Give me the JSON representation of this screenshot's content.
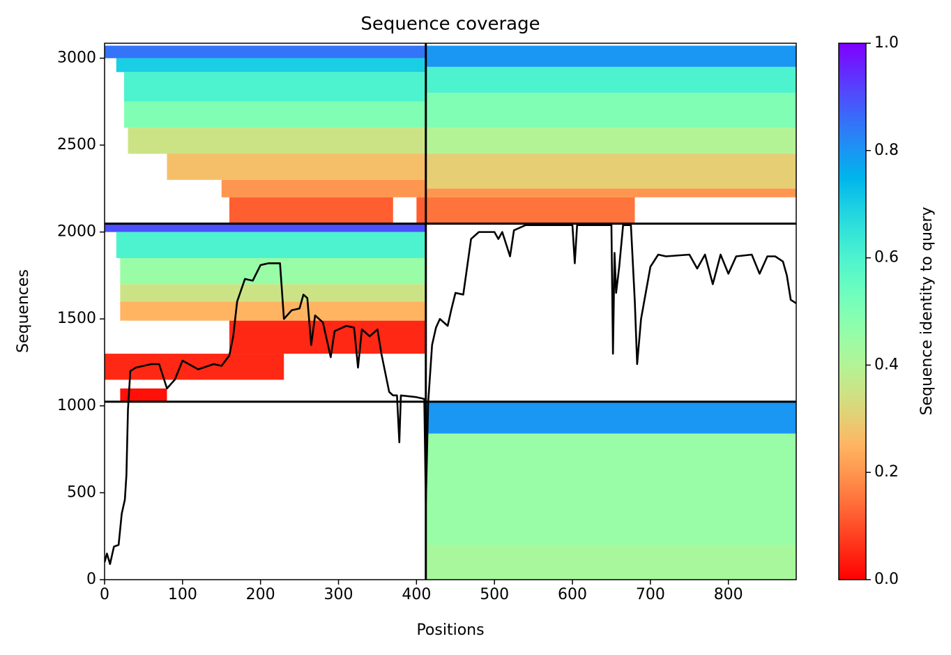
{
  "chart_data": {
    "type": "line",
    "title": "Sequence coverage",
    "xlabel": "Positions",
    "ylabel": "Sequences",
    "xlim": [
      0,
      887
    ],
    "ylim": [
      0,
      3086
    ],
    "xticks": [
      0,
      100,
      200,
      300,
      400,
      500,
      600,
      700,
      800
    ],
    "yticks": [
      0,
      500,
      1000,
      1500,
      2000,
      2500,
      3000
    ],
    "colormap": "rainbow_r",
    "colorbar_label": "Sequence identity to query",
    "clim": [
      0,
      1
    ],
    "cticks": [
      {
        "value": 0,
        "label": "0.0"
      },
      {
        "value": 0.2,
        "label": "0.2"
      },
      {
        "value": 0.4,
        "label": "0.4"
      },
      {
        "value": 0.6,
        "label": "0.6"
      },
      {
        "value": 0.8,
        "label": "0.8"
      },
      {
        "value": 1,
        "label": "1.0"
      }
    ],
    "line_color": "#000000",
    "breaks": {
      "x": [
        412
      ],
      "y": [
        1024,
        2048
      ]
    },
    "heatmap": [
      {
        "x0": 0,
        "x1": 412,
        "y0": 3000,
        "y1": 3072,
        "identity": 0.85
      },
      {
        "x0": 15,
        "x1": 412,
        "y0": 2920,
        "y1": 3000,
        "identity": 0.7
      },
      {
        "x0": 25,
        "x1": 412,
        "y0": 2750,
        "y1": 2920,
        "identity": 0.6
      },
      {
        "x0": 25,
        "x1": 412,
        "y0": 2600,
        "y1": 2750,
        "identity": 0.5
      },
      {
        "x0": 30,
        "x1": 412,
        "y0": 2450,
        "y1": 2600,
        "identity": 0.35
      },
      {
        "x0": 80,
        "x1": 412,
        "y0": 2300,
        "y1": 2450,
        "identity": 0.27
      },
      {
        "x0": 150,
        "x1": 412,
        "y0": 2200,
        "y1": 2300,
        "identity": 0.2
      },
      {
        "x0": 160,
        "x1": 370,
        "y0": 2048,
        "y1": 2200,
        "identity": 0.12
      },
      {
        "x0": 400,
        "x1": 412,
        "y0": 2048,
        "y1": 2200,
        "identity": 0.12
      },
      {
        "x0": 413,
        "x1": 887,
        "y0": 2950,
        "y1": 3072,
        "identity": 0.8
      },
      {
        "x0": 413,
        "x1": 887,
        "y0": 2800,
        "y1": 2950,
        "identity": 0.6
      },
      {
        "x0": 413,
        "x1": 887,
        "y0": 2600,
        "y1": 2800,
        "identity": 0.5
      },
      {
        "x0": 413,
        "x1": 887,
        "y0": 2450,
        "y1": 2600,
        "identity": 0.4
      },
      {
        "x0": 413,
        "x1": 887,
        "y0": 2250,
        "y1": 2450,
        "identity": 0.3
      },
      {
        "x0": 413,
        "x1": 887,
        "y0": 2200,
        "y1": 2250,
        "identity": 0.2
      },
      {
        "x0": 413,
        "x1": 680,
        "y0": 2048,
        "y1": 2200,
        "identity": 0.15
      },
      {
        "x0": 0,
        "x1": 412,
        "y0": 2000,
        "y1": 2048,
        "identity": 0.9
      },
      {
        "x0": 15,
        "x1": 412,
        "y0": 1850,
        "y1": 2000,
        "identity": 0.6
      },
      {
        "x0": 20,
        "x1": 412,
        "y0": 1700,
        "y1": 1850,
        "identity": 0.45
      },
      {
        "x0": 20,
        "x1": 412,
        "y0": 1600,
        "y1": 1700,
        "identity": 0.35
      },
      {
        "x0": 20,
        "x1": 412,
        "y0": 1490,
        "y1": 1600,
        "identity": 0.25
      },
      {
        "x0": 160,
        "x1": 412,
        "y0": 1300,
        "y1": 1490,
        "identity": 0.05
      },
      {
        "x0": 0,
        "x1": 230,
        "y0": 1150,
        "y1": 1300,
        "identity": 0.05
      },
      {
        "x0": 20,
        "x1": 80,
        "y0": 1024,
        "y1": 1100,
        "identity": 0.02
      },
      {
        "x0": 413,
        "x1": 887,
        "y0": 840,
        "y1": 1024,
        "identity": 0.8
      },
      {
        "x0": 413,
        "x1": 887,
        "y0": 200,
        "y1": 840,
        "identity": 0.45
      },
      {
        "x0": 413,
        "x1": 887,
        "y0": 0,
        "y1": 200,
        "identity": 0.42
      }
    ],
    "x": [
      0,
      3,
      7,
      12,
      18,
      22,
      26,
      28,
      30,
      33,
      40,
      60,
      70,
      80,
      90,
      100,
      120,
      140,
      150,
      160,
      165,
      170,
      180,
      190,
      200,
      210,
      225,
      230,
      240,
      250,
      255,
      260,
      265,
      270,
      280,
      290,
      295,
      310,
      320,
      325,
      330,
      340,
      350,
      355,
      365,
      370,
      375,
      378,
      380,
      400,
      410,
      412,
      415,
      420,
      425,
      430,
      440,
      445,
      450,
      460,
      465,
      470,
      480,
      500,
      505,
      510,
      520,
      525,
      540,
      600,
      603,
      606,
      650,
      652,
      654,
      656,
      660,
      665,
      675,
      680,
      683,
      688,
      700,
      710,
      720,
      750,
      760,
      770,
      780,
      790,
      800,
      810,
      830,
      840,
      850,
      860,
      870,
      875,
      880,
      887
    ],
    "values": [
      100,
      150,
      90,
      190,
      200,
      380,
      460,
      600,
      980,
      1200,
      1220,
      1240,
      1240,
      1100,
      1150,
      1260,
      1210,
      1240,
      1230,
      1290,
      1400,
      1600,
      1730,
      1720,
      1810,
      1820,
      1820,
      1500,
      1550,
      1560,
      1640,
      1620,
      1350,
      1520,
      1480,
      1280,
      1430,
      1460,
      1450,
      1220,
      1440,
      1400,
      1440,
      1300,
      1080,
      1060,
      1060,
      790,
      1060,
      1050,
      1040,
      440,
      1020,
      1350,
      1450,
      1500,
      1460,
      1560,
      1650,
      1640,
      1800,
      1960,
      2000,
      2000,
      1960,
      2000,
      1860,
      2010,
      2040,
      2040,
      1820,
      2040,
      2040,
      1300,
      1880,
      1650,
      1800,
      2040,
      2040,
      1600,
      1240,
      1500,
      1800,
      1870,
      1860,
      1870,
      1790,
      1870,
      1700,
      1870,
      1760,
      1860,
      1870,
      1760,
      1860,
      1860,
      1830,
      1750,
      1610,
      1590
    ]
  }
}
